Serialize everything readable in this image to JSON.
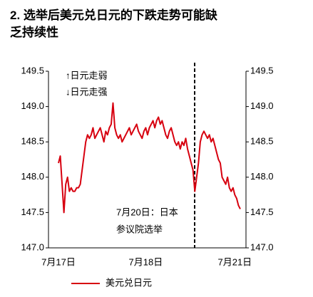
{
  "chart_data": {
    "type": "line",
    "title": "2. 选举后美元兑日元的下跌走势可能缺乏持续性",
    "annotations": [
      "↑日元走弱",
      "↓日元走强",
      "7月20日：日本",
      "参议院选举"
    ],
    "categories": [
      "7月17日",
      null,
      null,
      null,
      null,
      null,
      null,
      null,
      null,
      null,
      null,
      null,
      null,
      null,
      null,
      null,
      null,
      null,
      null,
      null,
      null,
      null,
      null,
      null,
      null,
      null,
      null,
      null,
      null,
      null,
      null,
      null,
      null,
      null,
      null,
      null,
      null,
      null,
      null,
      null,
      null,
      null,
      null,
      null,
      null,
      null,
      null,
      null,
      "7月18日",
      null,
      null,
      null,
      null,
      null,
      null,
      null,
      null,
      null,
      null,
      null,
      null,
      null,
      null,
      null,
      null,
      null,
      null,
      null,
      null,
      null,
      null,
      null,
      null,
      null,
      null,
      null,
      null,
      null,
      null,
      null,
      null,
      null,
      null,
      null,
      null,
      null,
      null,
      null,
      null,
      null,
      null,
      null,
      null,
      null,
      null,
      null,
      null,
      "7月21日",
      null,
      null,
      null
    ],
    "series": [
      {
        "name": "美元兑日元",
        "color": "#d7000f",
        "values": [
          148.2,
          148.3,
          147.9,
          147.5,
          147.9,
          148.0,
          147.8,
          147.85,
          147.8,
          147.8,
          147.85,
          147.85,
          147.9,
          148.1,
          148.3,
          148.5,
          148.6,
          148.55,
          148.6,
          148.7,
          148.55,
          148.6,
          148.65,
          148.7,
          148.6,
          148.5,
          148.65,
          148.6,
          148.7,
          148.75,
          149.05,
          148.7,
          148.6,
          148.55,
          148.6,
          148.5,
          148.55,
          148.6,
          148.65,
          148.7,
          148.6,
          148.65,
          148.7,
          148.75,
          148.65,
          148.6,
          148.55,
          148.65,
          148.7,
          148.6,
          148.7,
          148.75,
          148.8,
          148.7,
          148.8,
          148.85,
          148.75,
          148.8,
          148.7,
          148.6,
          148.55,
          148.65,
          148.7,
          148.6,
          148.5,
          148.45,
          148.5,
          148.4,
          148.5,
          148.45,
          148.55,
          148.4,
          148.3,
          148.2,
          148.1,
          147.8,
          148.0,
          148.2,
          148.5,
          148.6,
          148.65,
          148.6,
          148.55,
          148.6,
          148.5,
          148.55,
          148.45,
          148.35,
          148.25,
          148.2,
          148.0,
          147.95,
          147.9,
          148.0,
          147.85,
          147.8,
          147.85,
          147.75,
          147.7,
          147.6,
          147.55
        ]
      }
    ],
    "ylim": [
      147.0,
      149.5
    ],
    "yticks": [
      {
        "value": 147,
        "label": "147.0"
      },
      {
        "value": 147.5,
        "label": "147.5"
      },
      {
        "value": 148,
        "label": "148.0"
      },
      {
        "value": 148.5,
        "label": "148.5"
      },
      {
        "value": 149,
        "label": "149.0"
      },
      {
        "value": 149.5,
        "label": "149.5"
      }
    ],
    "y2lim": [
      147.0,
      149.5
    ],
    "y2ticks": [
      {
        "value": 147,
        "label": "147.0"
      },
      {
        "value": 147.5,
        "label": "147.5"
      },
      {
        "value": 148,
        "label": "148.0"
      },
      {
        "value": 148.5,
        "label": "148.5"
      },
      {
        "value": 149,
        "label": "149.0"
      },
      {
        "value": 149.5,
        "label": "149.5"
      }
    ],
    "legend": "bottom"
  }
}
